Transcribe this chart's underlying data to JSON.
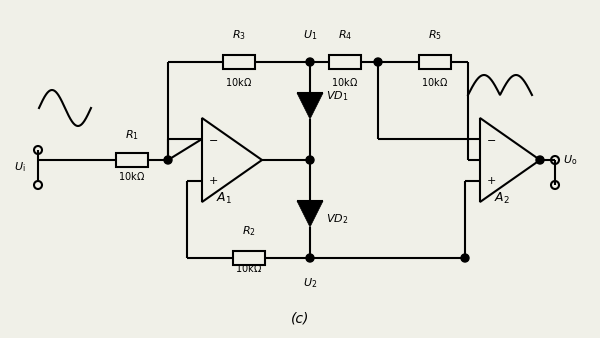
{
  "bg_color": "#f0f0e8",
  "line_color": "#000000",
  "title": "(c)",
  "font_size_label": 8,
  "font_size_value": 7,
  "font_size_node": 8
}
